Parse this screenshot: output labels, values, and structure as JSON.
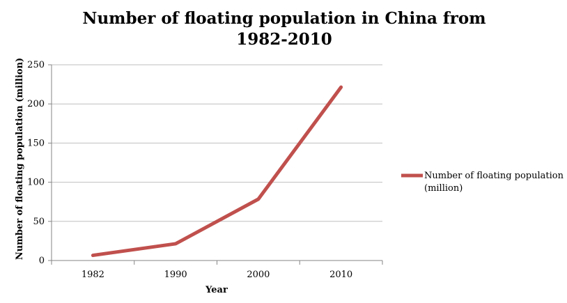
{
  "chart_data": {
    "type": "line",
    "title_lines": [
      "Number of floating population in China from",
      "1982-2010"
    ],
    "xlabel": "Year",
    "ylabel": "Number of floating population (million)",
    "categories": [
      "1982",
      "1990",
      "2000",
      "2010"
    ],
    "series": [
      {
        "name_lines": [
          "Number of floating population",
          "(million)"
        ],
        "values": [
          6.6,
          21.4,
          78.4,
          221.4
        ],
        "color": "#c0504d"
      }
    ],
    "ylim": [
      0,
      250
    ],
    "yticks": [
      "0",
      "50",
      "100",
      "150",
      "200",
      "250"
    ],
    "ytick_values": [
      0,
      50,
      100,
      150,
      200,
      250
    ],
    "grid": true,
    "legend_position": "right"
  }
}
